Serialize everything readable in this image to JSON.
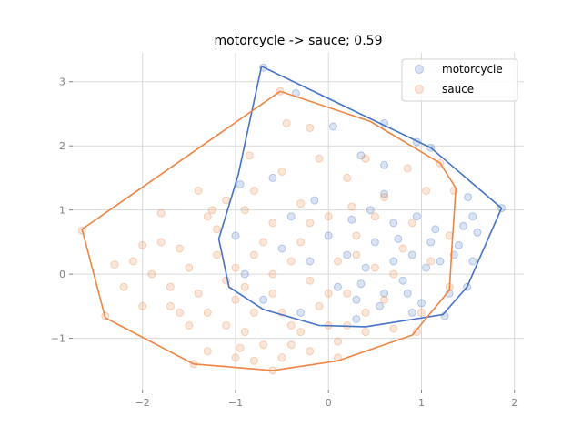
{
  "chart_data": {
    "type": "scatter",
    "title": "motorcycle -> sauce; 0.59",
    "xlabel": "",
    "ylabel": "",
    "xlim": [
      -2.75,
      2.1
    ],
    "ylim": [
      -1.8,
      3.45
    ],
    "xticks": [
      -2,
      -1,
      0,
      1,
      2
    ],
    "yticks": [
      -1,
      0,
      1,
      2,
      3
    ],
    "xtick_labels": [
      "−2",
      "−1",
      "0",
      "1",
      "2"
    ],
    "ytick_labels": [
      "−1",
      "0",
      "1",
      "2",
      "3"
    ],
    "grid": true,
    "legend_position": "top-right",
    "series": [
      {
        "name": "motorcycle",
        "color": "#4472c4",
        "point_alpha": 0.2,
        "hull": [
          [
            -0.72,
            3.24
          ],
          [
            1.1,
            1.97
          ],
          [
            1.86,
            1.03
          ],
          [
            1.49,
            -0.2
          ],
          [
            1.23,
            -0.63
          ],
          [
            0.4,
            -0.82
          ],
          [
            -0.1,
            -0.8
          ],
          [
            -0.7,
            -0.55
          ],
          [
            -1.07,
            -0.2
          ],
          [
            -1.18,
            0.55
          ],
          [
            -0.97,
            1.55
          ],
          [
            -0.72,
            3.24
          ]
        ],
        "points": [
          [
            -0.7,
            3.22
          ],
          [
            -0.35,
            2.82
          ],
          [
            0.6,
            2.35
          ],
          [
            0.95,
            2.06
          ],
          [
            1.1,
            1.97
          ],
          [
            1.86,
            1.03
          ],
          [
            1.6,
            0.65
          ],
          [
            1.55,
            0.2
          ],
          [
            1.49,
            -0.2
          ],
          [
            1.25,
            -0.65
          ],
          [
            0.05,
            2.3
          ],
          [
            0.35,
            1.85
          ],
          [
            0.6,
            1.7
          ],
          [
            1.5,
            1.2
          ],
          [
            1.55,
            0.9
          ],
          [
            1.45,
            0.75
          ],
          [
            1.4,
            0.45
          ],
          [
            1.35,
            0.3
          ],
          [
            1.2,
            0.2
          ],
          [
            1.1,
            0.5
          ],
          [
            0.9,
            0.3
          ],
          [
            0.8,
            -0.1
          ],
          [
            0.7,
            0.2
          ],
          [
            0.6,
            -0.3
          ],
          [
            0.5,
            0.5
          ],
          [
            0.4,
            0.1
          ],
          [
            0.3,
            -0.4
          ],
          [
            0.2,
            0.3
          ],
          [
            0.1,
            -0.2
          ],
          [
            0.0,
            0.6
          ],
          [
            -0.2,
            0.2
          ],
          [
            -0.4,
            0.9
          ],
          [
            -0.6,
            1.5
          ],
          [
            -0.95,
            1.4
          ],
          [
            -1.0,
            0.6
          ],
          [
            -0.9,
            0.0
          ],
          [
            -0.7,
            -0.4
          ],
          [
            -0.3,
            -0.6
          ],
          [
            0.3,
            -0.7
          ],
          [
            0.9,
            -0.6
          ],
          [
            0.45,
            1.0
          ],
          [
            0.7,
            0.8
          ],
          [
            0.95,
            0.9
          ],
          [
            1.05,
            0.1
          ],
          [
            0.85,
            -0.3
          ],
          [
            0.55,
            -0.5
          ],
          [
            0.25,
            0.85
          ],
          [
            -0.15,
            1.15
          ],
          [
            0.6,
            1.25
          ],
          [
            1.15,
            0.7
          ],
          [
            1.3,
            -0.3
          ],
          [
            0.75,
            0.55
          ],
          [
            0.35,
            -0.15
          ],
          [
            -0.5,
            0.4
          ],
          [
            1.0,
            -0.45
          ]
        ]
      },
      {
        "name": "sauce",
        "color": "#ed8544",
        "point_alpha": 0.2,
        "hull": [
          [
            -0.52,
            2.85
          ],
          [
            0.45,
            2.38
          ],
          [
            1.2,
            1.73
          ],
          [
            1.37,
            1.34
          ],
          [
            1.33,
            0.5
          ],
          [
            1.3,
            -0.25
          ],
          [
            0.9,
            -0.95
          ],
          [
            0.1,
            -1.35
          ],
          [
            -0.6,
            -1.5
          ],
          [
            -1.45,
            -1.4
          ],
          [
            -2.4,
            -0.68
          ],
          [
            -2.65,
            0.7
          ],
          [
            -0.52,
            2.85
          ]
        ],
        "points": [
          [
            -0.52,
            2.85
          ],
          [
            -0.85,
            1.85
          ],
          [
            -0.45,
            2.35
          ],
          [
            -0.2,
            2.28
          ],
          [
            0.4,
            1.8
          ],
          [
            0.85,
            1.65
          ],
          [
            1.2,
            1.73
          ],
          [
            1.35,
            1.3
          ],
          [
            1.3,
            0.6
          ],
          [
            1.3,
            -0.2
          ],
          [
            0.95,
            -0.9
          ],
          [
            0.1,
            -1.3
          ],
          [
            -0.6,
            -1.5
          ],
          [
            -1.45,
            -1.4
          ],
          [
            -2.4,
            -0.65
          ],
          [
            -2.65,
            0.68
          ],
          [
            -2.3,
            0.15
          ],
          [
            -2.1,
            0.2
          ],
          [
            -2.0,
            -0.5
          ],
          [
            -1.8,
            0.95
          ],
          [
            -1.4,
            1.3
          ],
          [
            -1.25,
            1.0
          ],
          [
            -1.1,
            1.15
          ],
          [
            -1.6,
            0.4
          ],
          [
            -1.7,
            -0.2
          ],
          [
            -1.5,
            -0.8
          ],
          [
            -1.3,
            -1.2
          ],
          [
            -1.0,
            -1.3
          ],
          [
            -0.8,
            -1.35
          ],
          [
            -0.5,
            -1.3
          ],
          [
            -0.2,
            -1.2
          ],
          [
            0.1,
            -1.05
          ],
          [
            0.4,
            -0.9
          ],
          [
            0.7,
            -0.85
          ],
          [
            -1.9,
            0.0
          ],
          [
            -1.2,
            0.3
          ],
          [
            -1.0,
            -0.4
          ],
          [
            -0.9,
            -0.9
          ],
          [
            -0.7,
            -1.1
          ],
          [
            -0.4,
            -0.8
          ],
          [
            -0.1,
            -0.5
          ],
          [
            0.2,
            -0.3
          ],
          [
            0.5,
            0.1
          ],
          [
            0.8,
            0.4
          ],
          [
            1.1,
            0.2
          ],
          [
            1.0,
            -0.6
          ],
          [
            0.3,
            0.6
          ],
          [
            0.0,
            0.9
          ],
          [
            -0.3,
            1.1
          ],
          [
            -0.6,
            0.8
          ],
          [
            -0.8,
            0.3
          ],
          [
            -1.1,
            -0.1
          ],
          [
            -1.3,
            -0.6
          ],
          [
            -1.5,
            0.1
          ],
          [
            -0.4,
            0.2
          ],
          [
            -0.2,
            -0.1
          ],
          [
            0.1,
            0.2
          ],
          [
            -0.6,
            -0.3
          ],
          [
            -0.8,
            -0.6
          ],
          [
            -0.3,
            -0.9
          ],
          [
            0.2,
            -0.8
          ],
          [
            0.6,
            -0.4
          ],
          [
            0.9,
            0.8
          ],
          [
            0.6,
            1.2
          ],
          [
            0.2,
            1.5
          ],
          [
            -0.1,
            1.8
          ],
          [
            -0.5,
            1.6
          ],
          [
            -0.9,
            1.0
          ],
          [
            -1.2,
            0.7
          ],
          [
            -1.4,
            -0.3
          ],
          [
            -1.6,
            -0.6
          ],
          [
            -1.8,
            0.5
          ],
          [
            -2.2,
            -0.2
          ],
          [
            -0.6,
            0.0
          ],
          [
            -0.3,
            0.5
          ],
          [
            0.0,
            -0.3
          ],
          [
            0.3,
            0.3
          ],
          [
            -0.9,
            -0.2
          ],
          [
            -0.5,
            -0.6
          ],
          [
            -0.7,
            0.5
          ],
          [
            -1.0,
            0.1
          ],
          [
            -0.2,
            0.8
          ],
          [
            0.5,
            0.9
          ],
          [
            0.7,
            0.0
          ],
          [
            -1.1,
            -0.8
          ],
          [
            -0.4,
            -1.1
          ],
          [
            0.0,
            -0.8
          ],
          [
            0.4,
            -0.6
          ],
          [
            -0.8,
            1.3
          ],
          [
            -1.3,
            0.9
          ],
          [
            -1.7,
            -0.5
          ],
          [
            -0.95,
            -1.15
          ],
          [
            0.25,
            1.05
          ],
          [
            1.05,
            1.3
          ],
          [
            -2.0,
            0.45
          ]
        ]
      }
    ]
  }
}
